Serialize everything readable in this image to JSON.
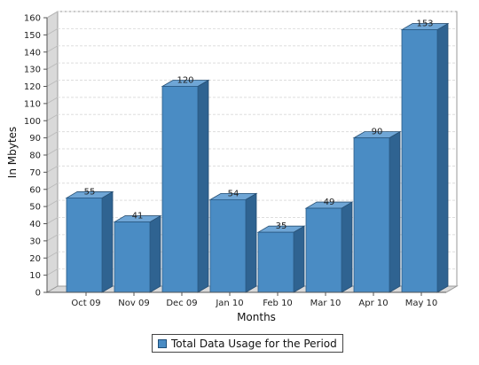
{
  "chart_data": {
    "type": "bar",
    "categories": [
      "Oct 09",
      "Nov 09",
      "Dec 09",
      "Jan 10",
      "Feb 10",
      "Mar 10",
      "Apr 10",
      "May 10"
    ],
    "series": [
      {
        "name": "Total Data Usage for the Period",
        "values": [
          55,
          41,
          120,
          54,
          35,
          49,
          90,
          153
        ]
      }
    ],
    "xlabel": "Months",
    "ylabel": "In Mbytes",
    "ylim": [
      0,
      160
    ],
    "yticks": [
      0,
      10,
      20,
      30,
      40,
      50,
      60,
      70,
      80,
      90,
      100,
      110,
      120,
      130,
      140,
      150,
      160
    ],
    "grid": true,
    "legend_position": "bottom",
    "bar_style": "3d",
    "colors": {
      "bar_front": "#4a8cc4",
      "bar_top": "#6fa6d6",
      "bar_side": "#2f6391",
      "wall": "#d9d9d9",
      "grid": "#dddddd"
    }
  }
}
